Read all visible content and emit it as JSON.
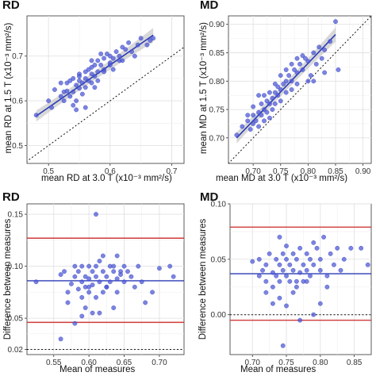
{
  "chart_data": [
    {
      "type": "scatter",
      "title": "RD",
      "xlabel": "mean RD at 3.0 T (x10⁻³ mm²/s)",
      "ylabel": "mean RD at 1.5 T (x10⁻³ mm²/s)",
      "xlim": [
        0.465,
        0.72
      ],
      "ylim": [
        0.46,
        0.79
      ],
      "xticks": [
        0.5,
        0.6,
        0.7
      ],
      "xtick_labels": [
        "0.5",
        "0.6",
        "0.7"
      ],
      "yticks": [
        0.5,
        0.6,
        0.7
      ],
      "ytick_labels": [
        "0.5",
        "0.6",
        "0.7"
      ],
      "grid": true,
      "identity_line": true,
      "fit": {
        "x0": 0.48,
        "y0": 0.566,
        "x1": 0.67,
        "y1": 0.747
      },
      "series": [
        {
          "x": [
            0.48,
            0.5,
            0.505,
            0.51,
            0.52,
            0.52,
            0.525,
            0.53,
            0.53,
            0.535,
            0.535,
            0.54,
            0.54,
            0.545,
            0.545,
            0.55,
            0.55,
            0.55,
            0.555,
            0.555,
            0.56,
            0.56,
            0.56,
            0.565,
            0.565,
            0.57,
            0.57,
            0.57,
            0.575,
            0.575,
            0.58,
            0.58,
            0.58,
            0.585,
            0.59,
            0.59,
            0.595,
            0.6,
            0.6,
            0.605,
            0.61,
            0.615,
            0.62,
            0.625,
            0.63,
            0.64,
            0.645,
            0.65,
            0.66,
            0.665,
            0.67,
            0.545,
            0.56,
            0.575,
            0.59,
            0.605,
            0.615,
            0.635,
            0.55,
            0.57,
            0.585,
            0.6,
            0.54,
            0.525,
            0.62
          ],
          "y": [
            0.568,
            0.6,
            0.585,
            0.625,
            0.61,
            0.64,
            0.6,
            0.622,
            0.64,
            0.61,
            0.645,
            0.62,
            0.65,
            0.6,
            0.635,
            0.628,
            0.645,
            0.66,
            0.615,
            0.64,
            0.65,
            0.665,
            0.63,
            0.645,
            0.67,
            0.64,
            0.66,
            0.675,
            0.655,
            0.68,
            0.665,
            0.69,
            0.645,
            0.68,
            0.67,
            0.695,
            0.705,
            0.685,
            0.7,
            0.695,
            0.71,
            0.7,
            0.72,
            0.715,
            0.73,
            0.7,
            0.725,
            0.74,
            0.725,
            0.735,
            0.74,
            0.58,
            0.585,
            0.63,
            0.665,
            0.67,
            0.69,
            0.71,
            0.655,
            0.69,
            0.705,
            0.68,
            0.59,
            0.62,
            0.69
          ]
        }
      ]
    },
    {
      "type": "scatter",
      "title": "MD",
      "xlabel": "mean MD at 3.0 T (x10⁻³ mm²/s)",
      "ylabel": "mean MD at 1.5 T (x10⁻³ mm²/s)",
      "xlim": [
        0.655,
        0.915
      ],
      "ylim": [
        0.655,
        0.915
      ],
      "xticks": [
        0.7,
        0.75,
        0.8,
        0.85,
        0.9
      ],
      "xtick_labels": [
        "0.70",
        "0.75",
        "0.80",
        "0.85",
        "0.90"
      ],
      "yticks": [
        0.7,
        0.75,
        0.8,
        0.85,
        0.9
      ],
      "ytick_labels": [
        "0.70",
        "0.75",
        "0.80",
        "0.85",
        "0.90"
      ],
      "grid": true,
      "identity_line": true,
      "fit": {
        "x0": 0.67,
        "y0": 0.7,
        "x1": 0.85,
        "y1": 0.882
      },
      "series": [
        {
          "x": [
            0.67,
            0.68,
            0.69,
            0.695,
            0.7,
            0.7,
            0.705,
            0.71,
            0.71,
            0.715,
            0.715,
            0.72,
            0.72,
            0.725,
            0.725,
            0.73,
            0.73,
            0.735,
            0.735,
            0.74,
            0.74,
            0.745,
            0.745,
            0.75,
            0.75,
            0.755,
            0.76,
            0.76,
            0.765,
            0.77,
            0.77,
            0.775,
            0.78,
            0.78,
            0.785,
            0.79,
            0.795,
            0.8,
            0.805,
            0.81,
            0.815,
            0.82,
            0.825,
            0.83,
            0.84,
            0.85,
            0.855,
            0.7,
            0.72,
            0.74,
            0.76,
            0.78,
            0.8,
            0.73,
            0.75,
            0.77,
            0.79,
            0.81,
            0.69,
            0.71,
            0.83
          ],
          "y": [
            0.705,
            0.72,
            0.73,
            0.715,
            0.74,
            0.725,
            0.73,
            0.745,
            0.72,
            0.74,
            0.76,
            0.75,
            0.73,
            0.765,
            0.745,
            0.76,
            0.735,
            0.77,
            0.75,
            0.78,
            0.76,
            0.775,
            0.79,
            0.785,
            0.765,
            0.795,
            0.8,
            0.78,
            0.81,
            0.8,
            0.785,
            0.82,
            0.815,
            0.795,
            0.83,
            0.82,
            0.84,
            0.835,
            0.81,
            0.85,
            0.83,
            0.86,
            0.84,
            0.855,
            0.87,
            0.905,
            0.82,
            0.755,
            0.775,
            0.795,
            0.82,
            0.84,
            0.8,
            0.78,
            0.81,
            0.83,
            0.845,
            0.8,
            0.74,
            0.775,
            0.815
          ]
        }
      ]
    },
    {
      "type": "scatter",
      "title": "RD",
      "xlabel": "Mean of measures",
      "ylabel": "Difference between measures",
      "xlim": [
        0.512,
        0.735
      ],
      "ylim": [
        0.015,
        0.16
      ],
      "xticks": [
        0.55,
        0.6,
        0.65,
        0.7
      ],
      "xtick_labels": [
        "0.55",
        "0.60",
        "0.65",
        "0.70"
      ],
      "yticks": [
        0.02,
        0.05,
        0.1,
        0.15
      ],
      "ytick_labels": [
        "0.02",
        "0.05",
        "0.10",
        "0.15"
      ],
      "grid": true,
      "zero_line": 0.02,
      "mean_line": 0.086,
      "limit_lines": [
        0.127,
        0.046
      ],
      "series": [
        {
          "x": [
            0.525,
            0.56,
            0.565,
            0.57,
            0.575,
            0.58,
            0.58,
            0.585,
            0.585,
            0.59,
            0.59,
            0.59,
            0.595,
            0.595,
            0.6,
            0.6,
            0.6,
            0.605,
            0.605,
            0.61,
            0.61,
            0.61,
            0.615,
            0.615,
            0.62,
            0.62,
            0.625,
            0.625,
            0.63,
            0.63,
            0.635,
            0.635,
            0.64,
            0.64,
            0.645,
            0.65,
            0.65,
            0.655,
            0.66,
            0.665,
            0.67,
            0.675,
            0.68,
            0.69,
            0.7,
            0.715,
            0.72,
            0.57,
            0.58,
            0.595,
            0.605,
            0.615,
            0.625,
            0.635,
            0.645,
            0.61,
            0.59,
            0.62,
            0.6,
            0.56,
            0.64
          ],
          "y": [
            0.085,
            0.092,
            0.095,
            0.075,
            0.083,
            0.09,
            0.1,
            0.078,
            0.095,
            0.085,
            0.07,
            0.1,
            0.09,
            0.08,
            0.1,
            0.088,
            0.075,
            0.095,
            0.082,
            0.15,
            0.1,
            0.09,
            0.085,
            0.105,
            0.075,
            0.11,
            0.09,
            0.08,
            0.1,
            0.085,
            0.095,
            0.06,
            0.088,
            0.075,
            0.092,
            0.1,
            0.085,
            0.095,
            0.09,
            0.08,
            0.1,
            0.085,
            0.065,
            0.075,
            0.098,
            0.1,
            0.09,
            0.065,
            0.045,
            0.06,
            0.055,
            0.055,
            0.08,
            0.1,
            0.095,
            0.07,
            0.052,
            0.095,
            0.08,
            0.03,
            0.11
          ]
        }
      ]
    },
    {
      "type": "scatter",
      "title": "MD",
      "xlabel": "Mean of measures",
      "ylabel": "Difference between measures",
      "xlim": [
        0.667,
        0.875
      ],
      "ylim": [
        -0.036,
        0.1
      ],
      "xticks": [
        0.7,
        0.75,
        0.8,
        0.85
      ],
      "xtick_labels": [
        "0.70",
        "0.75",
        "0.80",
        "0.85"
      ],
      "yticks": [
        0,
        0.05,
        0.1
      ],
      "ytick_labels": [
        "0.00",
        "0.05",
        "0.10"
      ],
      "grid": true,
      "zero_line": 0,
      "mean_line": 0.037,
      "limit_lines": [
        0.079,
        -0.005
      ],
      "series": [
        {
          "x": [
            0.7,
            0.71,
            0.71,
            0.715,
            0.72,
            0.72,
            0.725,
            0.73,
            0.73,
            0.735,
            0.735,
            0.74,
            0.74,
            0.745,
            0.745,
            0.75,
            0.75,
            0.75,
            0.755,
            0.755,
            0.76,
            0.76,
            0.765,
            0.765,
            0.77,
            0.77,
            0.775,
            0.775,
            0.78,
            0.78,
            0.785,
            0.785,
            0.79,
            0.79,
            0.795,
            0.8,
            0.8,
            0.805,
            0.81,
            0.815,
            0.82,
            0.825,
            0.83,
            0.835,
            0.845,
            0.86,
            0.87,
            0.72,
            0.73,
            0.74,
            0.75,
            0.76,
            0.77,
            0.78,
            0.79,
            0.8,
            0.81,
            0.745,
            0.765,
            0.74
          ],
          "y": [
            0.048,
            0.035,
            0.05,
            0.04,
            0.03,
            0.045,
            0.055,
            0.038,
            0.025,
            0.05,
            0.035,
            0.045,
            0.03,
            0.055,
            0.04,
            0.05,
            0.035,
            0.062,
            0.045,
            0.03,
            0.055,
            0.04,
            0.05,
            0.025,
            0.06,
            0.038,
            0.045,
            0.03,
            0.055,
            0.04,
            0.05,
            0.035,
            0.065,
            0.045,
            0.06,
            0.05,
            0.04,
            0.07,
            0.035,
            0.055,
            0.045,
            0.06,
            0.04,
            0.05,
            0.06,
            0.06,
            0.045,
            0.02,
            0.01,
            0.015,
            0.008,
            0.02,
            -0.005,
            0.03,
            0.0,
            0.01,
            0.025,
            -0.028,
            0.03,
            0.07
          ]
        }
      ]
    }
  ]
}
